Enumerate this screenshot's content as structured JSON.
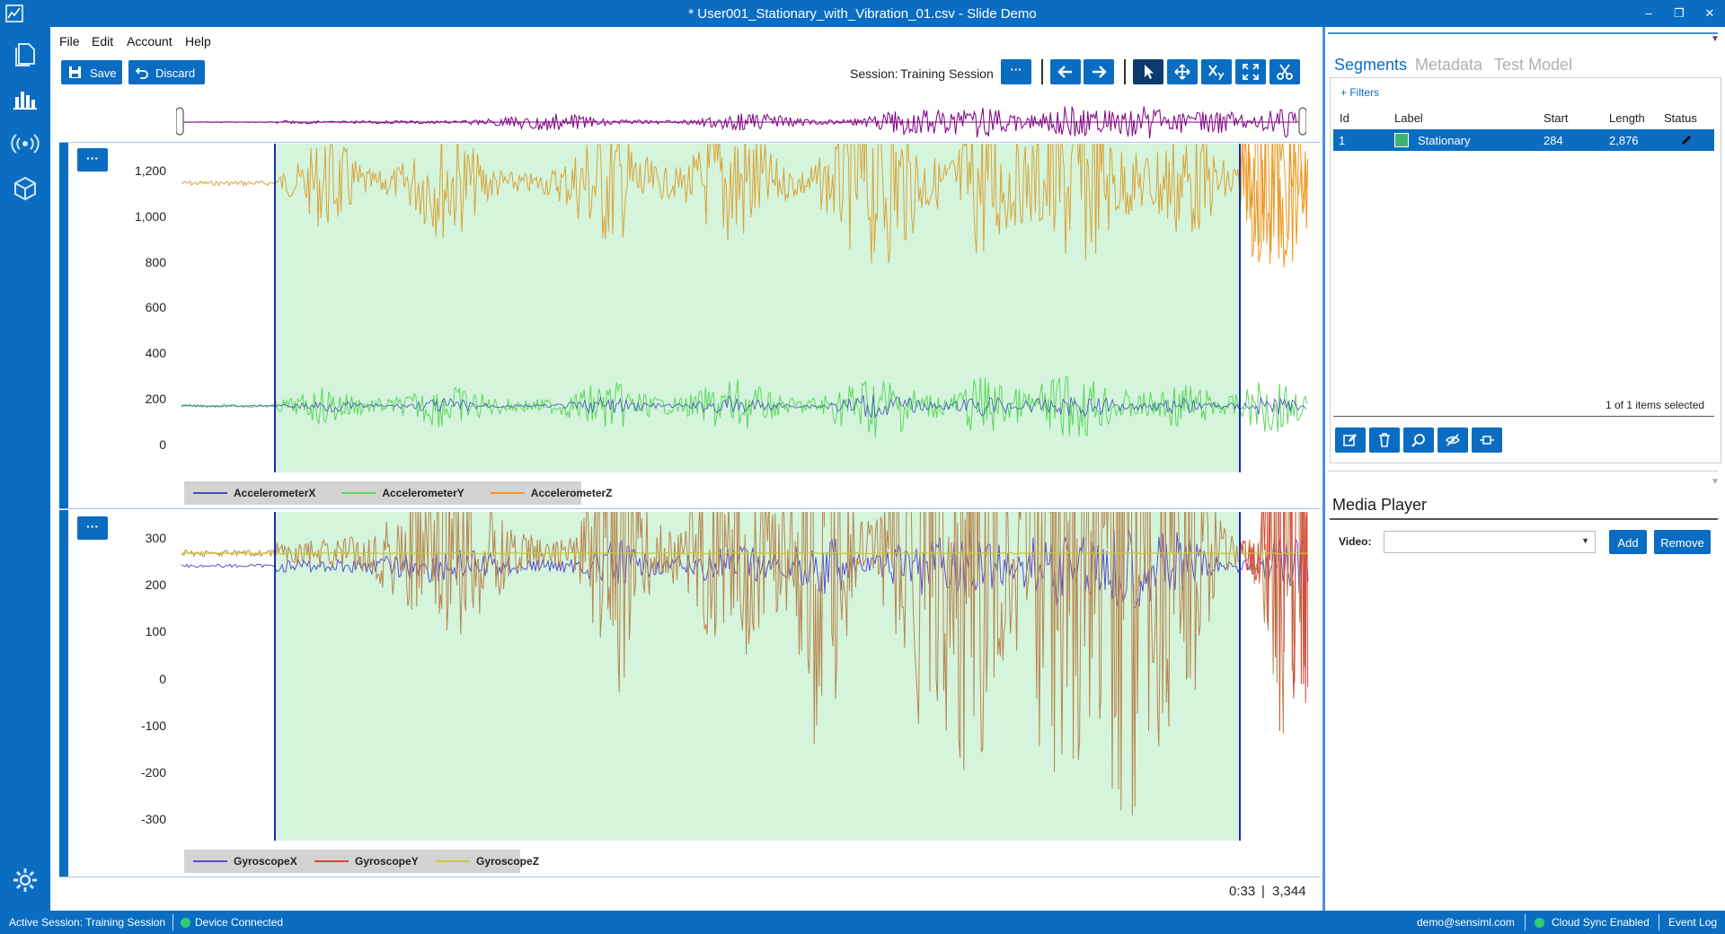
{
  "window": {
    "title": "* User001_Stationary_with_Vibration_01.csv - Slide Demo",
    "minimize": "–",
    "restore": "❐",
    "close": "✕"
  },
  "nav": {
    "items": [
      "files-icon",
      "charts-icon",
      "sensor-icon",
      "model-icon"
    ],
    "settings": "gear-icon"
  },
  "menu": {
    "file": "File",
    "edit": "Edit",
    "account": "Account",
    "help": "Help"
  },
  "toolbar": {
    "save_label": "Save",
    "discard_label": "Discard",
    "session_prefix": "Session:",
    "session_name": "Training Session",
    "more": "···"
  },
  "charts": {
    "accel": {
      "more": "···",
      "ticks": [
        "1,200",
        "1,000",
        "800",
        "600",
        "400",
        "200",
        "0"
      ],
      "legend": [
        {
          "name": "AccelerometerX",
          "color": "#3f51b5"
        },
        {
          "name": "AccelerometerY",
          "color": "#5cd65c"
        },
        {
          "name": "AccelerometerZ",
          "color": "#f7941d"
        }
      ]
    },
    "gyro": {
      "more": "···",
      "ticks": [
        "300",
        "200",
        "100",
        "0",
        "-100",
        "-200",
        "-300"
      ],
      "legend": [
        {
          "name": "GyroscopeX",
          "color": "#5a4fcf"
        },
        {
          "name": "GyroscopeY",
          "color": "#d9473a"
        },
        {
          "name": "GyroscopeZ",
          "color": "#c8c832"
        }
      ]
    },
    "segment_color": "#d4f4dc"
  },
  "footer": {
    "time": "0:33",
    "separator": "|",
    "count": "3,344"
  },
  "segments_panel": {
    "tabs": {
      "segments": "Segments",
      "metadata": "Metadata",
      "test_model": "Test Model"
    },
    "filters": "+ Filters",
    "columns": {
      "id": "Id",
      "label": "Label",
      "start": "Start",
      "length": "Length",
      "status": "Status"
    },
    "rows": [
      {
        "id": "1",
        "label": "Stationary",
        "start": "284",
        "length": "2,876",
        "color": "#3cb371"
      }
    ],
    "selection_info": "1 of 1 items selected"
  },
  "media": {
    "title": "Media Player",
    "video_label": "Video:",
    "video_value": "",
    "add_label": "Add",
    "remove_label": "Remove"
  },
  "status": {
    "active_session": "Active Session:  Training Session",
    "device": "Device Connected",
    "user": "demo@sensiml.com",
    "cloud": "Cloud Sync Enabled",
    "event_log": "Event Log"
  }
}
